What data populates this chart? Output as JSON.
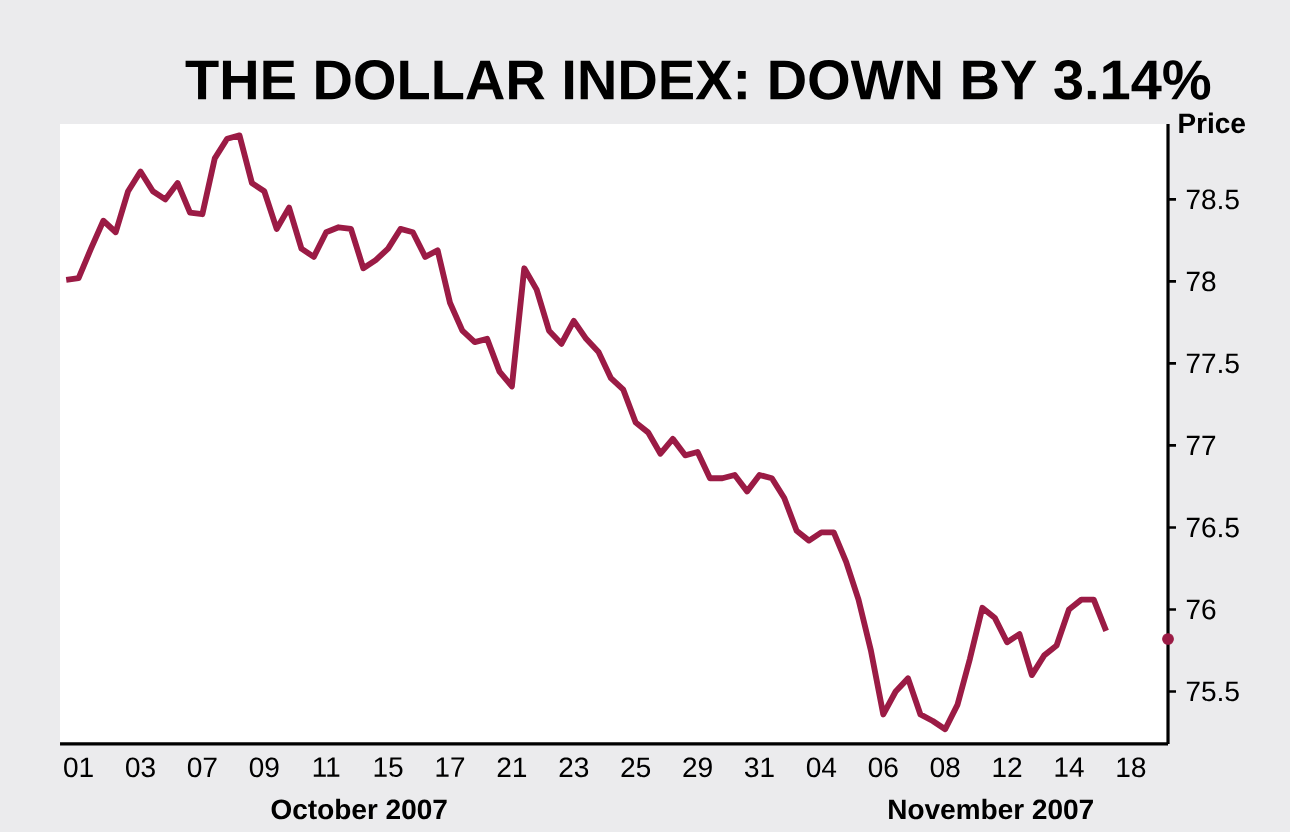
{
  "chart_data": {
    "type": "line",
    "title": "THE DOLLAR INDEX: DOWN BY 3.14%",
    "ylabel": "Price",
    "annotations": [
      "October 2007",
      "November 2007"
    ],
    "categories": [
      null,
      "01",
      null,
      null,
      null,
      null,
      "03",
      null,
      null,
      null,
      null,
      "07",
      null,
      null,
      null,
      null,
      "09",
      null,
      null,
      null,
      null,
      "11",
      null,
      null,
      null,
      null,
      "15",
      null,
      null,
      null,
      null,
      "17",
      null,
      null,
      null,
      null,
      "21",
      null,
      null,
      null,
      null,
      "23",
      null,
      null,
      null,
      null,
      "25",
      null,
      null,
      null,
      null,
      "29",
      null,
      null,
      null,
      null,
      "31",
      null,
      null,
      null,
      null,
      "04",
      null,
      null,
      null,
      null,
      "06",
      null,
      null,
      null,
      null,
      "08",
      null,
      null,
      null,
      null,
      "12",
      null,
      null,
      null,
      null,
      "14",
      null,
      null,
      null,
      null,
      "18",
      null,
      null,
      null
    ],
    "series": [
      {
        "color": "#9b1b45",
        "marker": "none",
        "values": [
          78.01,
          78.02,
          78.2,
          78.37,
          78.3,
          78.55,
          78.67,
          78.55,
          78.5,
          78.6,
          78.42,
          78.41,
          78.75,
          78.87,
          78.89,
          78.6,
          78.55,
          78.32,
          78.45,
          78.2,
          78.15,
          78.3,
          78.33,
          78.32,
          78.08,
          78.13,
          78.2,
          78.32,
          78.3,
          78.15,
          78.19,
          77.87,
          77.7,
          77.63,
          77.65,
          77.45,
          77.36,
          78.08,
          77.95,
          77.7,
          77.62,
          77.76,
          77.65,
          77.57,
          77.41,
          77.34,
          77.14,
          77.08,
          76.95,
          77.04,
          76.94,
          76.96,
          76.8,
          76.8,
          76.82,
          76.72,
          76.82,
          76.8,
          76.68,
          76.48,
          76.42,
          76.47,
          76.47,
          76.29,
          76.06,
          75.75,
          75.36,
          75.5,
          75.58,
          75.36,
          75.32,
          75.27,
          75.42,
          75.7,
          76.01,
          75.95,
          75.8,
          75.85,
          75.6,
          75.72,
          75.78,
          76.0,
          76.06,
          76.06,
          75.87,
          null,
          null,
          null,
          null,
          null
        ]
      },
      {
        "type": "scatter",
        "marker": "circle",
        "color": "#9b1b45",
        "values": [
          null,
          null,
          null,
          null,
          null,
          null,
          null,
          null,
          null,
          null,
          null,
          null,
          null,
          null,
          null,
          null,
          null,
          null,
          null,
          null,
          null,
          null,
          null,
          null,
          null,
          null,
          null,
          null,
          null,
          null,
          null,
          null,
          null,
          null,
          null,
          null,
          null,
          null,
          null,
          null,
          null,
          null,
          null,
          null,
          null,
          null,
          null,
          null,
          null,
          null,
          null,
          null,
          null,
          null,
          null,
          null,
          null,
          null,
          null,
          null,
          null,
          null,
          null,
          null,
          null,
          null,
          null,
          null,
          null,
          null,
          null,
          null,
          null,
          null,
          null,
          null,
          null,
          null,
          null,
          null,
          null,
          null,
          null,
          null,
          null,
          null,
          null,
          null,
          null,
          75.82
        ]
      }
    ],
    "line_style": "solid",
    "ylim": [
      75.18,
      78.96
    ],
    "yticks": [
      75.5,
      76,
      76.5,
      77,
      77.5,
      78,
      78.5
    ]
  }
}
